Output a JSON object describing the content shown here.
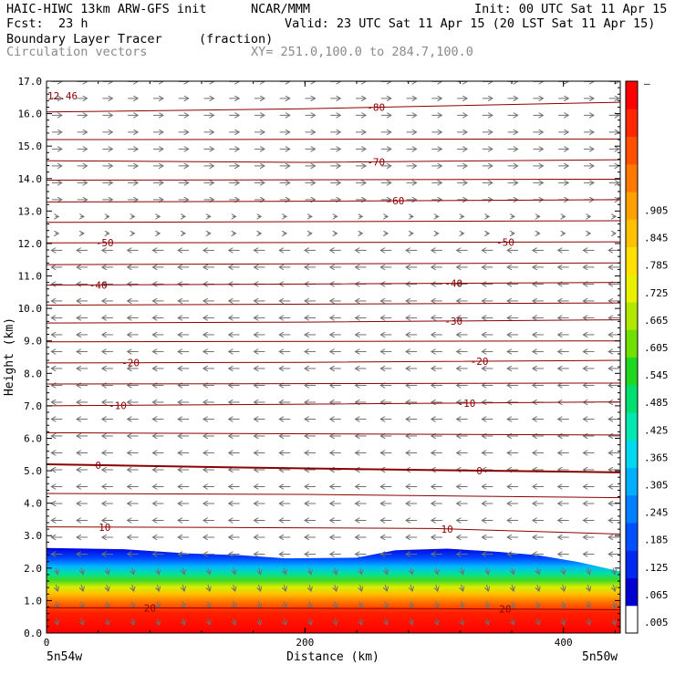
{
  "header": {
    "model": "HAIC-HIWC 13km ARW-GFS init",
    "center": "NCAR/MMM",
    "init": "Init: 00 UTC Sat 11 Apr 15",
    "fcst_label": "Fcst:",
    "fcst_value": "23 h",
    "valid": "Valid: 23 UTC Sat 11 Apr 15 (20 LST Sat 11 Apr 15)",
    "field_name": "Boundary Layer Tracer",
    "field_units": "(fraction)",
    "vector_label": "Circulation vectors",
    "cross_section": "XY= 251.0,100.0 to 284.7,100.0"
  },
  "chart_data": {
    "type": "heatmap",
    "description_fields": [
      "Boundary Layer Tracer (fraction, shaded)",
      "Temperature contours (C)",
      "Circulation vectors"
    ],
    "xlabel": "Distance (km)",
    "ylabel": "Height (km)",
    "xlim": [
      0,
      444
    ],
    "ylim": [
      0,
      17
    ],
    "x_ticks": [
      0,
      200,
      400
    ],
    "x_tick_labels": [
      "0",
      "200",
      "400"
    ],
    "y_ticks": [
      0,
      1,
      2,
      3,
      4,
      5,
      6,
      7,
      8,
      9,
      10,
      11,
      12,
      13,
      14,
      15,
      16,
      17
    ],
    "y_tick_labels": [
      "0.0",
      "1.0",
      "2.0",
      "3.0",
      "4.0",
      "5.0",
      "6.0",
      "7.0",
      "8.0",
      "9.0",
      "10.0",
      "11.0",
      "12.0",
      "13.0",
      "14.0",
      "15.0",
      "16.0",
      "17.0"
    ],
    "x_end_labels": [
      "5n54w",
      "5n50w"
    ],
    "max_label": "12.46",
    "colorbar": {
      "labels": [
        ".005",
        ".065",
        ".125",
        ".185",
        ".245",
        ".305",
        ".365",
        ".425",
        ".485",
        ".545",
        ".605",
        ".665",
        ".725",
        ".785",
        ".845",
        ".905"
      ],
      "top_label": "–",
      "colors": [
        "#ffffff",
        "#0000d0",
        "#0028f0",
        "#0050ff",
        "#0080ff",
        "#00b0ff",
        "#00d8f0",
        "#00e8b0",
        "#00e070",
        "#20d820",
        "#70e000",
        "#b0e800",
        "#e8f000",
        "#ffe000",
        "#ffc000",
        "#ffa000",
        "#ff7800",
        "#ff5000",
        "#ff2800",
        "#ff0000"
      ]
    },
    "tracer_top_km": [
      {
        "x": 0,
        "z": 2.62
      },
      {
        "x": 60,
        "z": 2.58
      },
      {
        "x": 110,
        "z": 2.45
      },
      {
        "x": 150,
        "z": 2.4
      },
      {
        "x": 185,
        "z": 2.3
      },
      {
        "x": 240,
        "z": 2.32
      },
      {
        "x": 270,
        "z": 2.55
      },
      {
        "x": 310,
        "z": 2.6
      },
      {
        "x": 350,
        "z": 2.5
      },
      {
        "x": 380,
        "z": 2.4
      },
      {
        "x": 410,
        "z": 2.2
      },
      {
        "x": 444,
        "z": 1.9
      }
    ],
    "contours": [
      {
        "label": "20",
        "points": [
          [
            0,
            0.78
          ],
          [
            150,
            0.77
          ],
          [
            300,
            0.75
          ],
          [
            444,
            0.72
          ]
        ],
        "label_x": [
          80,
          355
        ]
      },
      {
        "label": "10",
        "points": [
          [
            0,
            3.27
          ],
          [
            150,
            3.25
          ],
          [
            300,
            3.22
          ],
          [
            444,
            3.05
          ]
        ],
        "label_x": [
          45,
          310
        ]
      },
      {
        "label": "",
        "points": [
          [
            0,
            4.3
          ],
          [
            200,
            4.27
          ],
          [
            444,
            4.17
          ]
        ],
        "label_x": []
      },
      {
        "label": "0",
        "points": [
          [
            0,
            5.2
          ],
          [
            150,
            5.1
          ],
          [
            300,
            5.02
          ],
          [
            444,
            4.95
          ]
        ],
        "label_x": [
          40,
          335
        ]
      },
      {
        "label": "",
        "points": [
          [
            0,
            6.17
          ],
          [
            444,
            6.1
          ]
        ],
        "label_x": []
      },
      {
        "label": "-10",
        "points": [
          [
            0,
            7.0
          ],
          [
            200,
            7.05
          ],
          [
            444,
            7.12
          ]
        ],
        "label_x": [
          55,
          325
        ]
      },
      {
        "label": "",
        "points": [
          [
            0,
            7.67
          ],
          [
            444,
            7.7
          ]
        ],
        "label_x": []
      },
      {
        "label": "-20",
        "points": [
          [
            0,
            8.32
          ],
          [
            200,
            8.34
          ],
          [
            444,
            8.4
          ]
        ],
        "label_x": [
          65,
          335
        ]
      },
      {
        "label": "",
        "points": [
          [
            0,
            8.97
          ],
          [
            444,
            9.0
          ]
        ],
        "label_x": []
      },
      {
        "label": "-30",
        "points": [
          [
            0,
            9.55
          ],
          [
            200,
            9.58
          ],
          [
            444,
            9.65
          ]
        ],
        "label_x": [
          315
        ]
      },
      {
        "label": "",
        "points": [
          [
            0,
            10.1
          ],
          [
            444,
            10.17
          ]
        ],
        "label_x": []
      },
      {
        "label": "-40",
        "points": [
          [
            0,
            10.72
          ],
          [
            200,
            10.75
          ],
          [
            444,
            10.8
          ]
        ],
        "label_x": [
          40,
          315
        ]
      },
      {
        "label": "",
        "points": [
          [
            0,
            11.35
          ],
          [
            444,
            11.4
          ]
        ],
        "label_x": []
      },
      {
        "label": "-50",
        "points": [
          [
            0,
            12.02
          ],
          [
            200,
            12.03
          ],
          [
            444,
            12.05
          ]
        ],
        "label_x": [
          45,
          355
        ]
      },
      {
        "label": "",
        "points": [
          [
            0,
            12.65
          ],
          [
            444,
            12.7
          ]
        ],
        "label_x": []
      },
      {
        "label": "-60",
        "points": [
          [
            0,
            13.28
          ],
          [
            200,
            13.3
          ],
          [
            444,
            13.35
          ]
        ],
        "label_x": [
          270
        ]
      },
      {
        "label": "",
        "points": [
          [
            0,
            13.95
          ],
          [
            444,
            13.98
          ]
        ],
        "label_x": []
      },
      {
        "label": "-70",
        "points": [
          [
            0,
            14.55
          ],
          [
            200,
            14.5
          ],
          [
            444,
            14.58
          ]
        ],
        "label_x": [
          255
        ]
      },
      {
        "label": "",
        "points": [
          [
            0,
            15.2
          ],
          [
            444,
            15.22
          ]
        ],
        "label_x": []
      },
      {
        "label": "-80",
        "points": [
          [
            0,
            16.05
          ],
          [
            200,
            16.15
          ],
          [
            444,
            16.35
          ]
        ],
        "label_x": [
          255
        ]
      }
    ]
  }
}
